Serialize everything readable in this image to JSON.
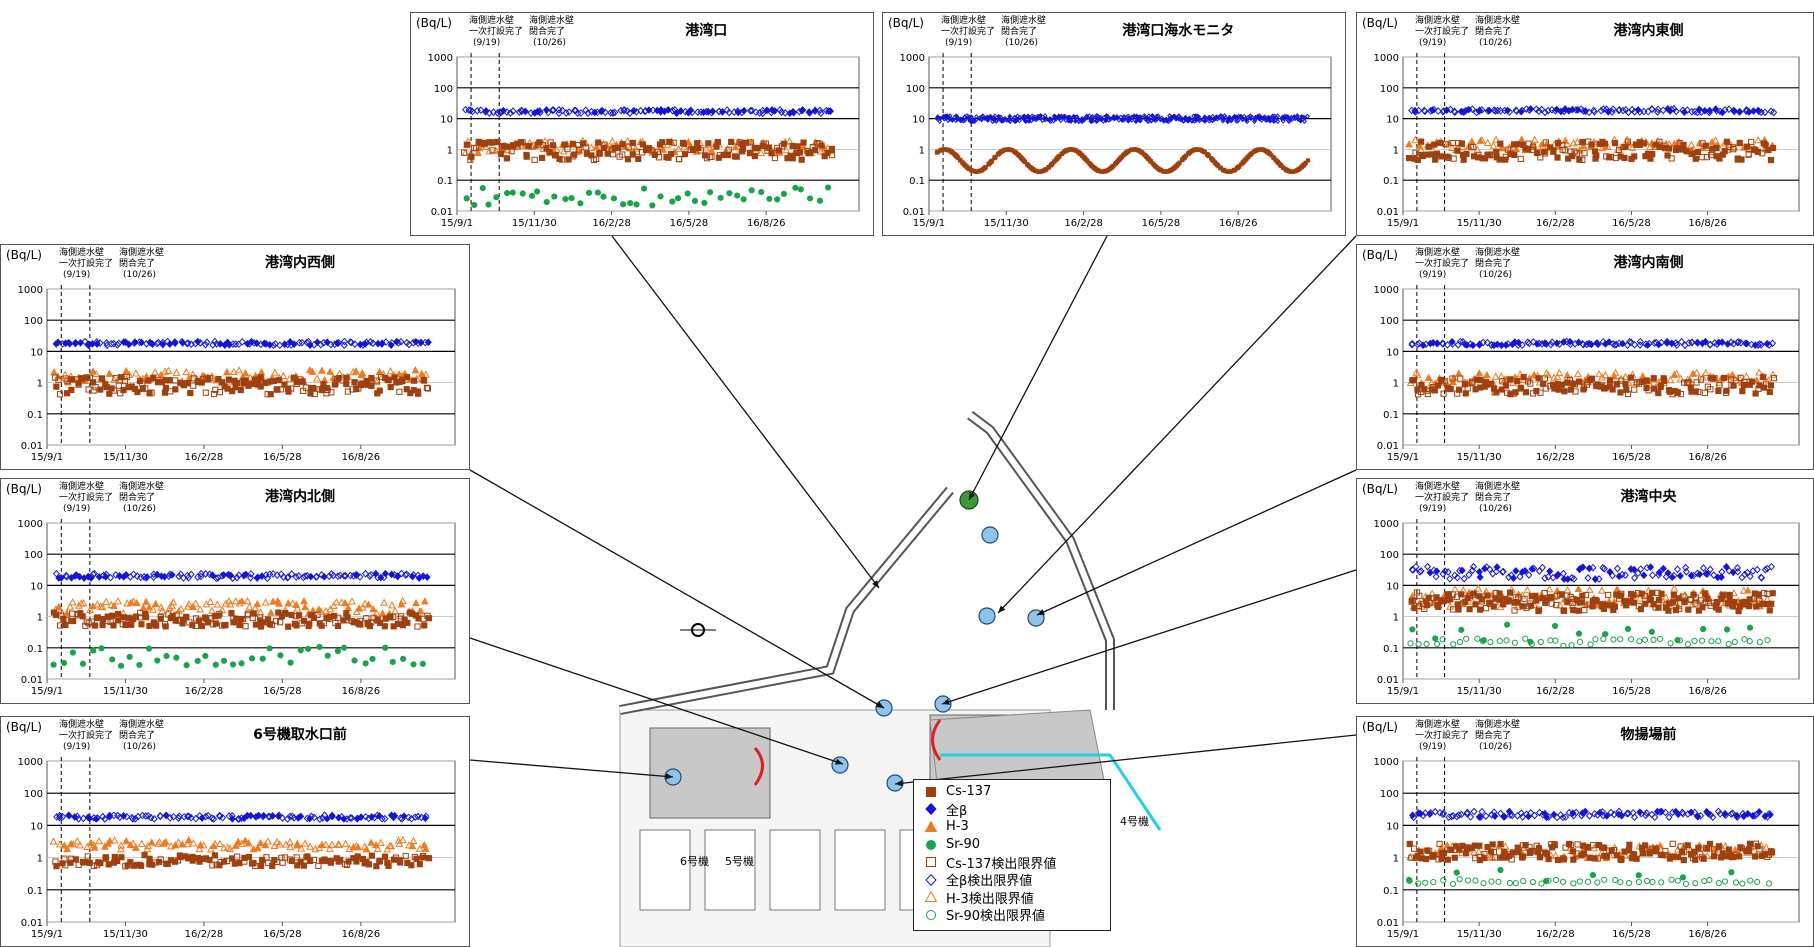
{
  "header": {
    "partial_text": ""
  },
  "common": {
    "unit_label": "(Bq/L)",
    "annotations": [
      {
        "line1": "海側遮水壁",
        "line2": "一次打設完了",
        "date": "(9/19)"
      },
      {
        "line1": "海側遮水壁",
        "line2": "閉合完了",
        "date": "(10/26)"
      }
    ],
    "yticks": [
      "1000",
      "100",
      "10",
      "1",
      "0.1",
      "0.01"
    ],
    "xticks": [
      "15/9/1",
      "15/11/30",
      "16/2/28",
      "16/5/28",
      "16/8/26"
    ]
  },
  "legend": [
    {
      "label": "Cs-137",
      "symbol": "square-filled",
      "color": "#a0400f"
    },
    {
      "label": "全β",
      "symbol": "diamond-filled",
      "color": "#1515d8"
    },
    {
      "label": "H-3",
      "symbol": "triangle-filled",
      "color": "#f07a20"
    },
    {
      "label": "Sr-90",
      "symbol": "circle-filled",
      "color": "#1aa34a"
    },
    {
      "label": "Cs-137検出限界値",
      "symbol": "square-open",
      "color": "#a0400f"
    },
    {
      "label": "全β検出限界値",
      "symbol": "diamond-open",
      "color": "#1515d8"
    },
    {
      "label": "H-3検出限界値",
      "symbol": "triangle-open",
      "color": "#f07a20"
    },
    {
      "label": "Sr-90検出限界値",
      "symbol": "circle-open",
      "color": "#1aa34a"
    }
  ],
  "map": {
    "labels": {
      "unit6": "6号機",
      "unit5": "5号機",
      "unit4": "4号機"
    },
    "colors": {
      "point": "#8ec3ea",
      "monitor": "#3a9a3a",
      "wall_red": "#e02020",
      "wall_cyan": "#22d0e0",
      "land": "#c8c8c8"
    }
  },
  "chart_data": [
    {
      "id": "port-entrance",
      "title": "港湾口",
      "type": "scatter",
      "ylim": [
        0.01,
        1000
      ],
      "yscale": "log",
      "xlim": [
        "15/9/1",
        "16/11/30"
      ],
      "series": [
        {
          "name": "全β",
          "center": 17,
          "spread": 1.15,
          "count": 120
        },
        {
          "name": "H-3",
          "center": 1.2,
          "spread": 1.6,
          "count": 100
        },
        {
          "name": "Cs-137",
          "center": 0.9,
          "spread": 2.0,
          "count": 160
        },
        {
          "name": "Sr-90",
          "center": 0.03,
          "spread": 2.0,
          "count": 45
        }
      ]
    },
    {
      "id": "port-monitor",
      "title": "港湾口海水モニタ",
      "type": "line",
      "ylim": [
        0.01,
        1000
      ],
      "yscale": "log",
      "xlim": [
        "15/9/1",
        "16/11/30"
      ],
      "series": [
        {
          "name": "全β",
          "center": 10,
          "spread": 1.25,
          "count": 400
        },
        {
          "name": "Cs-137",
          "center": 0.5,
          "spread": 4.0,
          "count": 600
        }
      ]
    },
    {
      "id": "inner-east",
      "title": "港湾内東側",
      "type": "scatter",
      "ylim": [
        0.01,
        1000
      ],
      "yscale": "log",
      "xlim": [
        "15/9/1",
        "16/11/30"
      ],
      "series": [
        {
          "name": "全β",
          "center": 18,
          "spread": 1.15,
          "count": 120
        },
        {
          "name": "H-3",
          "center": 1.4,
          "spread": 1.5,
          "count": 90
        },
        {
          "name": "Cs-137",
          "center": 0.9,
          "spread": 2.0,
          "count": 160
        }
      ]
    },
    {
      "id": "inner-west",
      "title": "港湾内西側",
      "type": "scatter",
      "ylim": [
        0.01,
        1000
      ],
      "yscale": "log",
      "xlim": [
        "15/9/1",
        "16/11/30"
      ],
      "series": [
        {
          "name": "全β",
          "center": 18,
          "spread": 1.15,
          "count": 120
        },
        {
          "name": "H-3",
          "center": 1.6,
          "spread": 1.6,
          "count": 90
        },
        {
          "name": "Cs-137",
          "center": 0.8,
          "spread": 1.9,
          "count": 170
        }
      ]
    },
    {
      "id": "inner-south",
      "title": "港湾内南側",
      "type": "scatter",
      "ylim": [
        0.01,
        1000
      ],
      "yscale": "log",
      "xlim": [
        "15/9/1",
        "16/11/30"
      ],
      "series": [
        {
          "name": "全β",
          "center": 18,
          "spread": 1.15,
          "count": 120
        },
        {
          "name": "H-3",
          "center": 1.4,
          "spread": 1.5,
          "count": 90
        },
        {
          "name": "Cs-137",
          "center": 0.8,
          "spread": 1.9,
          "count": 160
        }
      ]
    },
    {
      "id": "inner-north",
      "title": "港湾内北側",
      "type": "scatter",
      "ylim": [
        0.01,
        1000
      ],
      "yscale": "log",
      "xlim": [
        "15/9/1",
        "16/11/30"
      ],
      "series": [
        {
          "name": "全β",
          "center": 20,
          "spread": 1.2,
          "count": 120
        },
        {
          "name": "H-3",
          "center": 2.0,
          "spread": 1.6,
          "count": 100
        },
        {
          "name": "Cs-137",
          "center": 0.8,
          "spread": 1.7,
          "count": 170
        },
        {
          "name": "Sr-90",
          "center": 0.05,
          "spread": 2.2,
          "count": 40
        }
      ]
    },
    {
      "id": "port-center",
      "title": "港湾中央",
      "type": "scatter",
      "ylim": [
        0.01,
        1000
      ],
      "yscale": "log",
      "xlim": [
        "15/9/1",
        "16/11/30"
      ],
      "series": [
        {
          "name": "全β",
          "center": 25,
          "spread": 1.6,
          "count": 120
        },
        {
          "name": "H-3",
          "center": 4,
          "spread": 2.0,
          "count": 90
        },
        {
          "name": "Cs-137",
          "center": 3,
          "spread": 2.0,
          "count": 200
        },
        {
          "name": "Sr-90検出限界値",
          "center": 0.15,
          "spread": 1.3,
          "count": 45
        },
        {
          "name": "Sr-90",
          "center": 0.3,
          "spread": 2.0,
          "count": 15
        }
      ]
    },
    {
      "id": "unit6-intake",
      "title": "6号機取水口前",
      "type": "scatter",
      "ylim": [
        0.01,
        1000
      ],
      "yscale": "log",
      "xlim": [
        "15/9/1",
        "16/11/30"
      ],
      "series": [
        {
          "name": "全β",
          "center": 18,
          "spread": 1.15,
          "count": 120
        },
        {
          "name": "H-3",
          "center": 2.5,
          "spread": 1.4,
          "count": 100
        },
        {
          "name": "Cs-137",
          "center": 0.8,
          "spread": 1.5,
          "count": 130
        }
      ]
    },
    {
      "id": "unloading-wharf",
      "title": "物揚場前",
      "type": "scatter",
      "ylim": [
        0.01,
        1000
      ],
      "yscale": "log",
      "xlim": [
        "15/9/1",
        "16/11/30"
      ],
      "series": [
        {
          "name": "全β",
          "center": 22,
          "spread": 1.25,
          "count": 120
        },
        {
          "name": "H-3",
          "center": 1.5,
          "spread": 1.6,
          "count": 80
        },
        {
          "name": "Cs-137",
          "center": 1.5,
          "spread": 1.8,
          "count": 170
        },
        {
          "name": "Sr-90検出限界値",
          "center": 0.18,
          "spread": 1.2,
          "count": 45
        },
        {
          "name": "Sr-90",
          "center": 0.3,
          "spread": 1.6,
          "count": 8
        }
      ]
    }
  ]
}
